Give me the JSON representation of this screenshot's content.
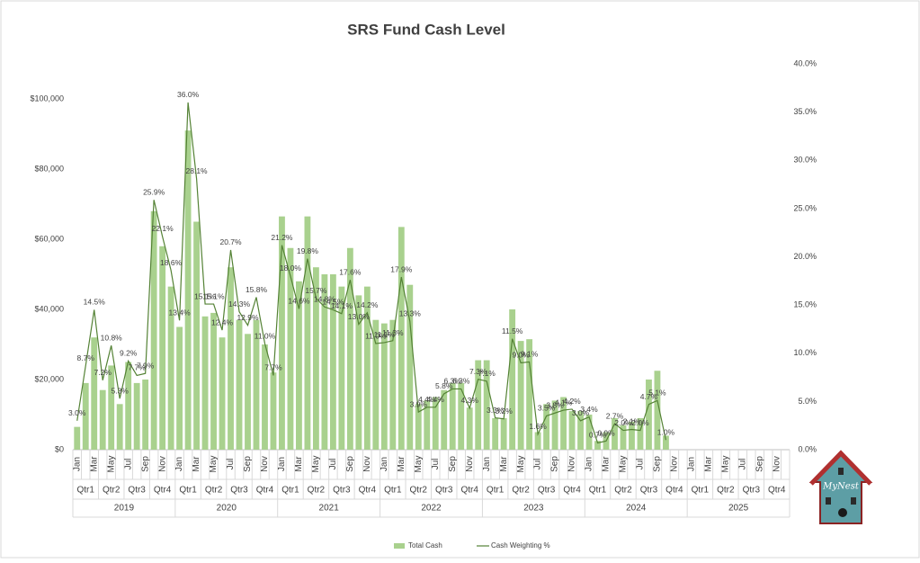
{
  "chart_data": {
    "type": "bar_line",
    "title": "SRS Fund Cash Level",
    "categories": [
      "Jan",
      null,
      "Mar",
      null,
      "May",
      null,
      "Jul",
      null,
      "Sep",
      null,
      "Nov",
      null,
      "Jan",
      null,
      "Mar",
      null,
      "May",
      null,
      "Jul",
      null,
      "Sep",
      null,
      "Nov",
      null,
      "Jan",
      null,
      "Mar",
      null,
      "May",
      null,
      "Jul",
      null,
      "Sep",
      null,
      "Nov",
      null,
      "Jan",
      null,
      "Mar",
      null,
      "May",
      null,
      "Jul",
      null,
      "Sep",
      null,
      "Nov",
      null,
      "Jan",
      null,
      "Mar",
      null,
      "May",
      null,
      "Jul",
      null,
      "Sep",
      null,
      "Nov",
      null,
      "Jan",
      null,
      "Mar",
      null,
      "May",
      null,
      "Jul",
      null,
      "Sep",
      null,
      "Nov",
      null,
      "Jan",
      null,
      "Mar",
      null,
      "May",
      null,
      "Jul",
      null,
      "Sep",
      null,
      "Nov",
      null
    ],
    "quarters": [
      "Qtr1",
      "Qtr2",
      "Qtr3",
      "Qtr4",
      "Qtr1",
      "Qtr2",
      "Qtr3",
      "Qtr4",
      "Qtr1",
      "Qtr2",
      "Qtr3",
      "Qtr4",
      "Qtr1",
      "Qtr2",
      "Qtr3",
      "Qtr4",
      "Qtr1",
      "Qtr2",
      "Qtr3",
      "Qtr4",
      "Qtr1",
      "Qtr2",
      "Qtr3",
      "Qtr4",
      "Qtr1",
      "Qtr2",
      "Qtr3",
      "Qtr4"
    ],
    "years": [
      "2019",
      "2020",
      "2021",
      "2022",
      "2023",
      "2024",
      "2025"
    ],
    "series": [
      {
        "name": "Total Cash",
        "color": "#a9d18e",
        "values": [
          6500,
          19000,
          32000,
          17000,
          24000,
          13000,
          25000,
          19000,
          20000,
          68000,
          58000,
          46500,
          35000,
          91000,
          65000,
          38000,
          39000,
          32000,
          52000,
          37000,
          33000,
          37000,
          30000,
          22000,
          66500,
          57500,
          48000,
          66500,
          52000,
          50000,
          50000,
          46500,
          57500,
          44000,
          46500,
          37000,
          36000,
          37000,
          63500,
          47000,
          13000,
          14000,
          15000,
          17000,
          19000,
          19000,
          12000,
          25500,
          25500,
          9000,
          9000,
          40000,
          31000,
          31500,
          5000,
          13000,
          14000,
          15000,
          11000,
          11000,
          10000,
          2500,
          5000,
          9000,
          7000,
          8000,
          9000,
          20000,
          22500,
          4000,
          null,
          null,
          null,
          null,
          null,
          null,
          null,
          null,
          null,
          null,
          null,
          null,
          null,
          null
        ]
      },
      {
        "name": "Cash Weighting %",
        "color": "#548235",
        "axis": "y2",
        "values": [
          3.0,
          8.7,
          14.5,
          7.2,
          10.8,
          5.3,
          9.2,
          7.7,
          7.9,
          25.9,
          22.1,
          18.6,
          13.4,
          36.0,
          28.1,
          15.1,
          15.1,
          12.4,
          20.7,
          14.3,
          12.9,
          15.8,
          11.0,
          7.7,
          21.2,
          18.0,
          14.6,
          19.8,
          15.7,
          14.8,
          14.5,
          14.1,
          17.6,
          13.0,
          14.2,
          11.0,
          11.1,
          11.3,
          17.9,
          13.3,
          3.9,
          4.4,
          4.4,
          5.8,
          6.3,
          6.3,
          4.3,
          7.3,
          7.1,
          3.3,
          3.2,
          11.5,
          9.0,
          9.1,
          1.6,
          3.5,
          3.8,
          4.1,
          4.2,
          3.0,
          3.4,
          0.7,
          0.9,
          2.7,
          2.0,
          2.1,
          2.0,
          4.7,
          5.1,
          1.0,
          null,
          null,
          null,
          null,
          null,
          null,
          null,
          null,
          null,
          null,
          null,
          null,
          null,
          null
        ],
        "value_labels": [
          "3.0%",
          "8.7%",
          "14.5%",
          "7.2%",
          "10.8%",
          "5.3%",
          "9.2%",
          "7.7%",
          "7.9%",
          "25.9%",
          "22.1%",
          "18.6%",
          "13.4%",
          "36.0%",
          "28.1%",
          "15.1%",
          "15.1%",
          "12.4%",
          "20.7%",
          "14.3%",
          "12.9%",
          "15.8%",
          "11.0%",
          "7.7%",
          "21.2%",
          "18.0%",
          "14.6%",
          "19.8%",
          "15.7%",
          "14.8%",
          "14.5%",
          "14.1%",
          "17.6%",
          "13.0%",
          "14.2%",
          "11.0%",
          "11.1%",
          "11.3%",
          "17.9%",
          "13.3%",
          "3.9%",
          "4.4%",
          "4.4%",
          "5.8%",
          "6.3%",
          "6.3%",
          "4.3%",
          "7.3%",
          "7.1%",
          "3.3%",
          "3.2%",
          "11.5%",
          "9.0%",
          "9.1%",
          "1.6%",
          "3.5%",
          "3.8%",
          "4.1%",
          "4.2%",
          "3.0%",
          "3.4%",
          "0.7%",
          "0.9%",
          "2.7%",
          "2.0%",
          "2.1%",
          "2.0%",
          "4.7%",
          "5.1%",
          "1.0%",
          null,
          null,
          null,
          null,
          null,
          null,
          null,
          null,
          null,
          null,
          null,
          null,
          null,
          null
        ]
      }
    ],
    "ylim": [
      0,
      110000
    ],
    "yticks": [
      {
        "value": 0,
        "label": "$0"
      },
      {
        "value": 20000,
        "label": "$20,000"
      },
      {
        "value": 40000,
        "label": "$40,000"
      },
      {
        "value": 60000,
        "label": "$60,000"
      },
      {
        "value": 80000,
        "label": "$80,000"
      },
      {
        "value": 100000,
        "label": "$100,000"
      }
    ],
    "y2lim": [
      0,
      40
    ],
    "y2ticks": [
      {
        "value": 0,
        "label": "0.0%"
      },
      {
        "value": 5,
        "label": "5.0%"
      },
      {
        "value": 10,
        "label": "10.0%"
      },
      {
        "value": 15,
        "label": "15.0%"
      },
      {
        "value": 20,
        "label": "20.0%"
      },
      {
        "value": 25,
        "label": "25.0%"
      },
      {
        "value": 30,
        "label": "30.0%"
      },
      {
        "value": 35,
        "label": "35.0%"
      },
      {
        "value": 40,
        "label": "40.0%"
      }
    ],
    "legend": "bottom",
    "logo_text": "MyNest"
  }
}
